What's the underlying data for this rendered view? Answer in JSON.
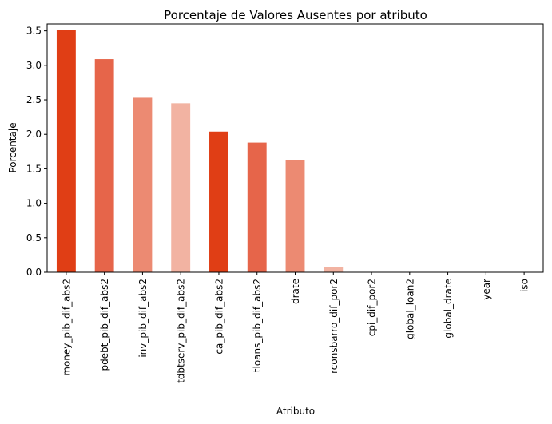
{
  "chart_data": {
    "type": "bar",
    "title": "Porcentaje de Valores Ausentes por atributo",
    "xlabel": "Atributo",
    "ylabel": "Porcentaje",
    "ylim": [
      0,
      3.6
    ],
    "yticks": [
      0.0,
      0.5,
      1.0,
      1.5,
      2.0,
      2.5,
      3.0,
      3.5
    ],
    "ytick_labels": [
      "0.0",
      "0.5",
      "1.0",
      "1.5",
      "2.0",
      "2.5",
      "3.0",
      "3.5"
    ],
    "grid": false,
    "categories": [
      "money_pib_dif_abs2",
      "pdebt_pib_dif_abs2",
      "inv_pib_dif_abs2",
      "tdbtserv_pib_dif_abs2",
      "ca_pib_dif_abs2",
      "tloans_pib_dif_abs2",
      "drate",
      "rconsbarro_dif_por2",
      "cpi_dif_por2",
      "global_loan2",
      "global_drate",
      "year",
      "iso"
    ],
    "values": [
      3.51,
      3.09,
      2.53,
      2.45,
      2.04,
      1.88,
      1.63,
      0.08,
      0,
      0,
      0,
      0,
      0
    ],
    "bar_colors": [
      "#e03e15",
      "#e6654a",
      "#ec8a72",
      "#f2b3a2",
      "#e03e15",
      "#e6654a",
      "#ec8a72",
      "#f2b3a2",
      "#e03e15",
      "#e6654a",
      "#ec8a72",
      "#f2b3a2",
      "#e03e15"
    ]
  }
}
